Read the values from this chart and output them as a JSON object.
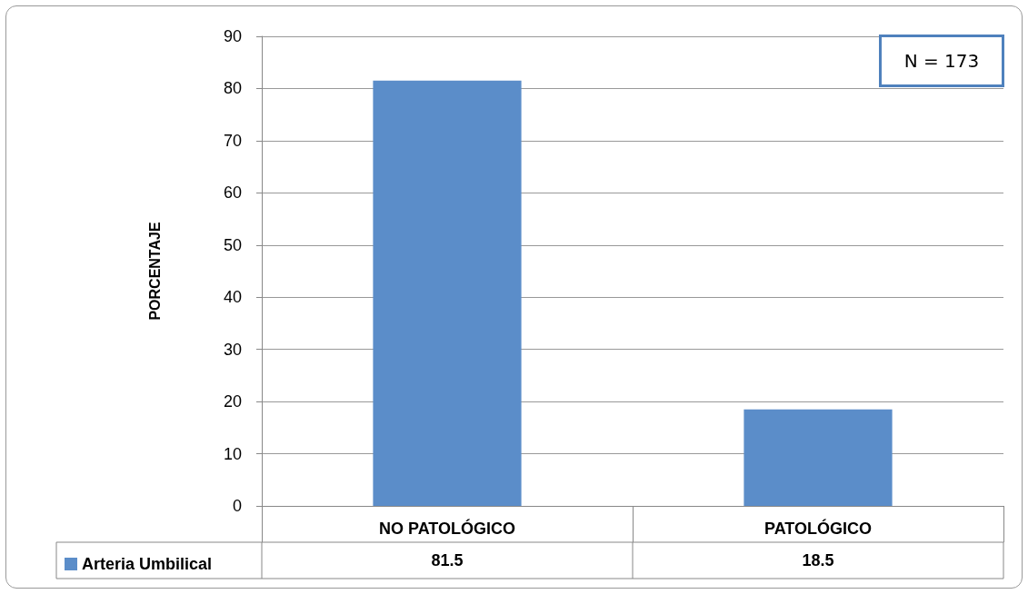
{
  "chart_data": {
    "type": "bar",
    "ylabel": "PORCENTAJE",
    "categories": [
      "NO PATOLÓGICO",
      "PATOLÓGICO"
    ],
    "series": [
      {
        "name": "Arteria Umbilical",
        "color": "#5b8dc9",
        "values": [
          81.5,
          18.5
        ]
      }
    ],
    "ylim": [
      0,
      90
    ],
    "yticks": [
      0,
      10,
      20,
      30,
      40,
      50,
      60,
      70,
      80,
      90
    ],
    "grid": "y",
    "legend": "bottom left",
    "data_labels": true,
    "annotations": [
      "N = 173"
    ]
  }
}
